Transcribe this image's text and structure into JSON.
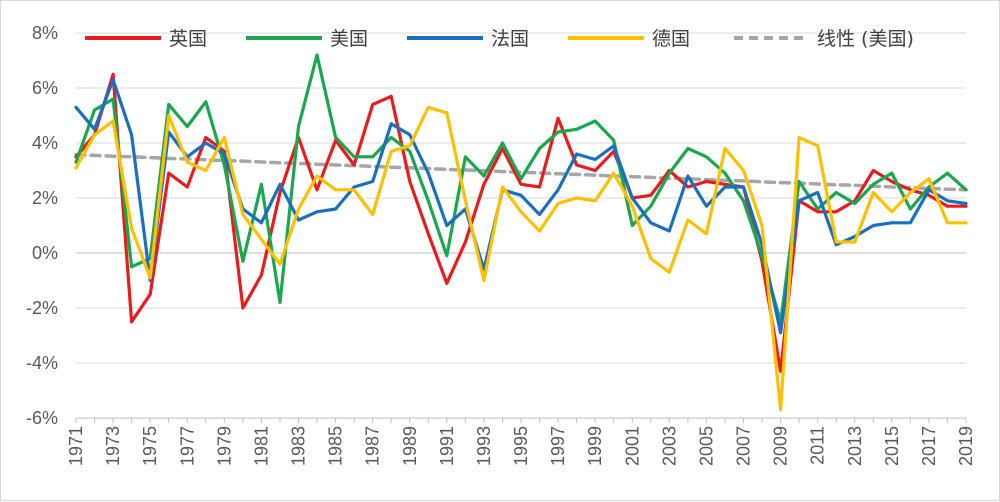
{
  "chart_data": {
    "type": "line",
    "title": "",
    "xlabel": "",
    "ylabel": "",
    "x": [
      1971,
      1972,
      1973,
      1974,
      1975,
      1976,
      1977,
      1978,
      1979,
      1980,
      1981,
      1982,
      1983,
      1984,
      1985,
      1986,
      1987,
      1988,
      1989,
      1990,
      1991,
      1992,
      1993,
      1994,
      1995,
      1996,
      1997,
      1998,
      1999,
      2000,
      2001,
      2002,
      2003,
      2004,
      2005,
      2006,
      2007,
      2008,
      2009,
      2010,
      2011,
      2012,
      2013,
      2014,
      2015,
      2016,
      2017,
      2018,
      2019
    ],
    "x_tick_labels": [
      "1971",
      "1973",
      "1975",
      "1977",
      "1979",
      "1981",
      "1983",
      "1985",
      "1987",
      "1989",
      "1991",
      "1993",
      "1995",
      "1997",
      "1999",
      "2001",
      "2003",
      "2005",
      "2007",
      "2009",
      "2011",
      "2013",
      "2015",
      "2017",
      "2019"
    ],
    "y_tick_labels": [
      "8%",
      "6%",
      "4%",
      "2%",
      "0%",
      "-2%",
      "-4%",
      "-6%"
    ],
    "y_ticks": [
      8,
      6,
      4,
      2,
      0,
      -2,
      -4,
      -6
    ],
    "ylim": [
      -6,
      8
    ],
    "grid": "horizontal",
    "legend_position": "top",
    "series": [
      {
        "name": "英国",
        "color": "#e81c1c",
        "style": "solid",
        "values": [
          3.5,
          4.3,
          6.5,
          -2.5,
          -1.5,
          2.9,
          2.4,
          4.2,
          3.7,
          -2.0,
          -0.8,
          2.2,
          4.2,
          2.3,
          4.1,
          3.2,
          5.4,
          5.7,
          2.6,
          0.7,
          -1.1,
          0.4,
          2.5,
          3.8,
          2.5,
          2.4,
          4.9,
          3.2,
          3.0,
          3.7,
          2.0,
          2.1,
          3.0,
          2.4,
          2.6,
          2.5,
          2.4,
          -0.3,
          -4.3,
          1.9,
          1.5,
          1.5,
          1.9,
          3.0,
          2.6,
          2.3,
          2.1,
          1.7,
          1.7
        ]
      },
      {
        "name": "美国",
        "color": "#1aa74e",
        "style": "solid",
        "values": [
          3.3,
          5.2,
          5.6,
          -0.5,
          -0.2,
          5.4,
          4.6,
          5.5,
          3.2,
          -0.3,
          2.5,
          -1.8,
          4.6,
          7.2,
          4.2,
          3.5,
          3.5,
          4.2,
          3.7,
          1.9,
          -0.1,
          3.5,
          2.8,
          4.0,
          2.7,
          3.8,
          4.4,
          4.5,
          4.8,
          4.1,
          1.0,
          1.7,
          2.9,
          3.8,
          3.5,
          2.9,
          1.9,
          -0.1,
          -2.5,
          2.6,
          1.6,
          2.2,
          1.8,
          2.5,
          2.9,
          1.6,
          2.4,
          2.9,
          2.3
        ]
      },
      {
        "name": "法国",
        "color": "#1b6fbf",
        "style": "solid",
        "values": [
          5.3,
          4.5,
          6.3,
          4.3,
          -1.0,
          4.4,
          3.5,
          4.0,
          3.6,
          1.6,
          1.1,
          2.5,
          1.2,
          1.5,
          1.6,
          2.4,
          2.6,
          4.7,
          4.3,
          2.9,
          1.0,
          1.6,
          -0.6,
          2.3,
          2.1,
          1.4,
          2.3,
          3.6,
          3.4,
          3.9,
          2.0,
          1.1,
          0.8,
          2.8,
          1.7,
          2.4,
          2.4,
          0.3,
          -2.9,
          1.9,
          2.2,
          0.3,
          0.6,
          1.0,
          1.1,
          1.1,
          2.3,
          1.9,
          1.8
        ]
      },
      {
        "name": "德国",
        "color": "#ffc000",
        "style": "solid",
        "values": [
          3.1,
          4.3,
          4.8,
          0.9,
          -0.9,
          5.0,
          3.3,
          3.0,
          4.2,
          1.4,
          0.5,
          -0.4,
          1.6,
          2.8,
          2.3,
          2.3,
          1.4,
          3.7,
          3.9,
          5.3,
          5.1,
          1.9,
          -1.0,
          2.4,
          1.5,
          0.8,
          1.8,
          2.0,
          1.9,
          2.9,
          1.7,
          -0.2,
          -0.7,
          1.2,
          0.7,
          3.8,
          3.0,
          1.0,
          -5.7,
          4.2,
          3.9,
          0.4,
          0.4,
          2.2,
          1.5,
          2.2,
          2.7,
          1.1,
          1.1
        ]
      },
      {
        "name": "线性 (美国)",
        "color": "#a6a6a6",
        "style": "dashed",
        "trend_of": "美国",
        "values": [
          3.58,
          3.55,
          3.52,
          3.5,
          3.47,
          3.44,
          3.42,
          3.39,
          3.36,
          3.34,
          3.31,
          3.28,
          3.26,
          3.23,
          3.2,
          3.18,
          3.15,
          3.12,
          3.1,
          3.07,
          3.04,
          3.02,
          2.99,
          2.96,
          2.94,
          2.91,
          2.88,
          2.86,
          2.83,
          2.8,
          2.78,
          2.75,
          2.72,
          2.7,
          2.67,
          2.64,
          2.62,
          2.59,
          2.56,
          2.54,
          2.51,
          2.48,
          2.46,
          2.43,
          2.4,
          2.38,
          2.35,
          2.32,
          2.3
        ]
      }
    ]
  }
}
